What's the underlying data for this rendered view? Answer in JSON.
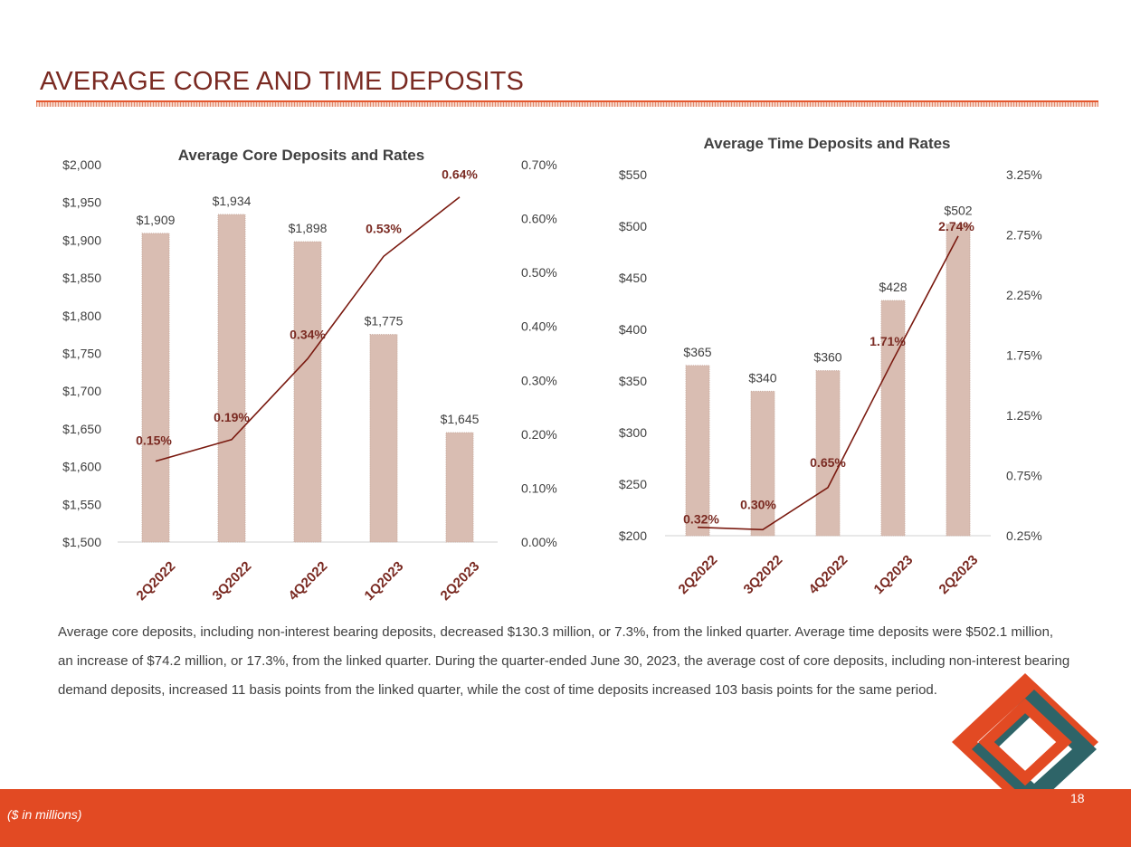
{
  "page": {
    "title": "AVERAGE CORE AND TIME DEPOSITS",
    "body_text": "Average core deposits, including non-interest bearing deposits, decreased $130.3 million, or 7.3%, from the linked quarter. Average time deposits were $502.1 million, an increase of $74.2 million, or 17.3%, from the linked quarter. During the quarter-ended June 30, 2023, the average cost of core deposits, including non-interest bearing demand deposits, increased 11 basis points from the linked quarter, while the cost of time deposits increased 103 basis points for the same period.",
    "footnote": "($ in millions)",
    "page_number": "18"
  },
  "colors": {
    "accent": "#e24a23",
    "title": "#7a2a22",
    "bar": "#d9bdb2",
    "line": "#7a1a10",
    "dark_teal": "#2e6468"
  },
  "chart_data": [
    {
      "type": "bar",
      "title": "Average Core Deposits and Rates",
      "categories": [
        "2Q2022",
        "3Q2022",
        "4Q2022",
        "1Q2023",
        "2Q2023"
      ],
      "series": [
        {
          "name": "Average Core Deposits",
          "type": "bar",
          "axis": "left",
          "values": [
            1909,
            1934,
            1898,
            1775,
            1645
          ],
          "labels": [
            "$1,909",
            "$1,934",
            "$1,898",
            "$1,775",
            "$1,645"
          ]
        },
        {
          "name": "Rate",
          "type": "line",
          "axis": "right",
          "values": [
            0.15,
            0.19,
            0.34,
            0.53,
            0.64
          ],
          "labels": [
            "0.15%",
            "0.19%",
            "0.34%",
            "0.53%",
            "0.64%"
          ]
        }
      ],
      "ylim": [
        1500,
        2000
      ],
      "yticks": [
        "$1,500",
        "$1,550",
        "$1,600",
        "$1,650",
        "$1,700",
        "$1,750",
        "$1,800",
        "$1,850",
        "$1,900",
        "$1,950",
        "$2,000"
      ],
      "y2lim": [
        0,
        0.7
      ],
      "y2ticks": [
        "0.00%",
        "0.10%",
        "0.20%",
        "0.30%",
        "0.40%",
        "0.50%",
        "0.60%",
        "0.70%"
      ]
    },
    {
      "type": "bar",
      "title": "Average Time Deposits and Rates",
      "categories": [
        "2Q2022",
        "3Q2022",
        "4Q2022",
        "1Q2023",
        "2Q2023"
      ],
      "series": [
        {
          "name": "Average Time Deposits",
          "type": "bar",
          "axis": "left",
          "values": [
            365,
            340,
            360,
            428,
            502
          ],
          "labels": [
            "$365",
            "$340",
            "$360",
            "$428",
            "$502"
          ]
        },
        {
          "name": "Rate",
          "type": "line",
          "axis": "right",
          "values": [
            0.32,
            0.3,
            0.65,
            1.71,
            2.74
          ],
          "labels": [
            "0.32%",
            "0.30%",
            "0.65%",
            "1.71%",
            "2.74%"
          ]
        }
      ],
      "ylim": [
        200,
        550
      ],
      "yticks": [
        "$200",
        "$250",
        "$300",
        "$350",
        "$400",
        "$450",
        "$500",
        "$550"
      ],
      "y2lim": [
        0.25,
        3.25
      ],
      "y2ticks": [
        "0.25%",
        "0.75%",
        "1.25%",
        "1.75%",
        "2.25%",
        "2.75%",
        "3.25%"
      ]
    }
  ]
}
